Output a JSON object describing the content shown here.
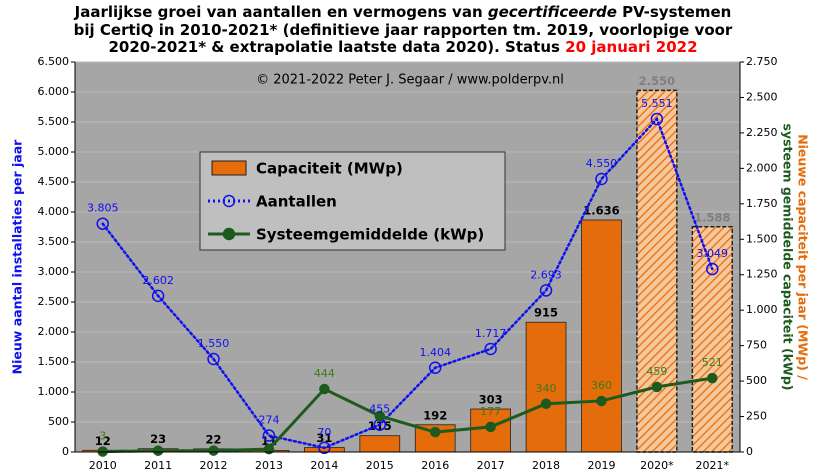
{
  "chart_data": {
    "type": "bar",
    "title_lines": [
      [
        "Jaarlijkse groei van aantallen en vermogens van ",
        "gecertificeerde",
        " PV-systemen"
      ],
      [
        "bij CertiQ in 2010-2021* (definitieve jaar rapporten tm. 2019, voorlopige voor"
      ],
      [
        "2020-2021* & extrapolatie laatste data 2020). Status ",
        "20 januari 2022"
      ]
    ],
    "annotation": "© 2021-2022  Peter J. Segaar / www.polderpv.nl",
    "y_label": "Nieuw aantal installaties per jaar",
    "y2_label_lines": [
      "Nieuwe capaciteit per jaar (MWp) /",
      "systeem gemiddelde capaciteit (kWp)"
    ],
    "categories": [
      "2010",
      "2011",
      "2012",
      "2013",
      "2014",
      "2015",
      "2016",
      "2017",
      "2018",
      "2019",
      "2020*",
      "2021*"
    ],
    "ylim": [
      0,
      6500
    ],
    "yticks": [
      0,
      500,
      {
        "value": 1000,
        "label": "1.000"
      },
      {
        "value": 1500,
        "label": "1.500"
      },
      {
        "value": 2000,
        "label": "2.000"
      },
      {
        "value": 2500,
        "label": "2.500"
      },
      {
        "value": 3000,
        "label": "3.000"
      },
      {
        "value": 3500,
        "label": "3.500"
      },
      {
        "value": 4000,
        "label": "4.000"
      },
      {
        "value": 4500,
        "label": "4.500"
      },
      {
        "value": 5000,
        "label": "5.000"
      },
      {
        "value": 5500,
        "label": "5.500"
      },
      {
        "value": 6000,
        "label": "6.000"
      },
      {
        "value": 6500,
        "label": "6.500"
      }
    ],
    "y2lim": [
      0,
      2750
    ],
    "y2ticks": [
      0,
      250,
      500,
      750,
      {
        "value": 1000,
        "label": "1.000"
      },
      {
        "value": 1250,
        "label": "1.250"
      },
      {
        "value": 1500,
        "label": "1.500"
      },
      {
        "value": 1750,
        "label": "1.750"
      },
      {
        "value": 2000,
        "label": "2.000"
      },
      {
        "value": 2250,
        "label": "2.250"
      },
      {
        "value": 2500,
        "label": "2.500"
      },
      {
        "value": 2750,
        "label": "2.750"
      }
    ],
    "grid": true,
    "series": [
      {
        "name": "Capaciteit (MWp)",
        "type": "bar",
        "axis": "y2",
        "color": "#e46c0a",
        "values": [
          12,
          23,
          22,
          11,
          31,
          115,
          192,
          303,
          915,
          1636,
          2550,
          1588
        ],
        "value_labels": [
          "12",
          "23",
          "22",
          "11",
          "31",
          "115",
          "192",
          "303",
          "915",
          "1.636",
          "2.550",
          "1.588"
        ],
        "hatched": [
          false,
          false,
          false,
          false,
          false,
          false,
          false,
          false,
          false,
          false,
          true,
          true
        ]
      },
      {
        "name": "Aantallen",
        "type": "line",
        "axis": "y",
        "color": "#1010f0",
        "dotted": true,
        "marker": "open",
        "values": [
          3805,
          2602,
          1550,
          274,
          70,
          455,
          1404,
          1717,
          2693,
          4550,
          5551,
          3049
        ],
        "value_labels": [
          "3.805",
          "2.602",
          "1.550",
          "274",
          "70",
          "455",
          "1.404",
          "1.717",
          "2.693",
          "4.550",
          "5.551",
          "3.049"
        ]
      },
      {
        "name": "Systeemgemiddelde (kWp)",
        "type": "line",
        "axis": "y2",
        "color": "#1d5a1d",
        "dotted": false,
        "marker": "filled",
        "values": [
          3,
          9,
          10,
          20,
          444,
          254,
          140,
          177,
          340,
          360,
          459,
          521
        ],
        "value_labels": [
          "3",
          null,
          null,
          null,
          "444",
          null,
          null,
          "177",
          "340",
          "360",
          "459",
          "521"
        ]
      }
    ]
  }
}
